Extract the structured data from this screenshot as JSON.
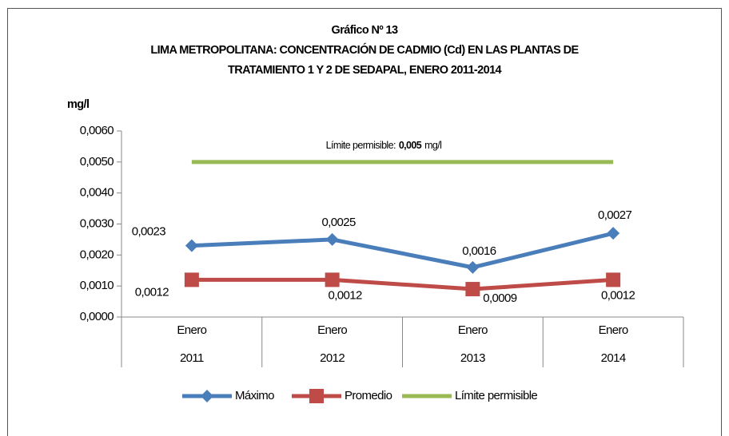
{
  "chart_data": {
    "type": "line",
    "title": "Gráfico Nº 13",
    "subtitle_lines": [
      "LIMA METROPOLITANA: CONCENTRACIÓN DE CADMIO (Cd) EN LAS PLANTAS DE",
      "TRATAMIENTO 1 Y 2 DE SEDAPAL, ENERO 2011-2014"
    ],
    "y_label": "mg/l",
    "categories": [
      "Enero",
      "Enero",
      "Enero",
      "Enero"
    ],
    "category_groups": [
      "2011",
      "2012",
      "2013",
      "2014"
    ],
    "series": [
      {
        "name": "Máximo",
        "color": "#4a7ebb",
        "marker": "diamond",
        "values": [
          0.0023,
          0.0025,
          0.0016,
          0.0027
        ],
        "value_labels": [
          "0,0023",
          "0,0025",
          "0,0016",
          "0,0027"
        ]
      },
      {
        "name": "Promedio",
        "color": "#be4b48",
        "marker": "square",
        "values": [
          0.0012,
          0.0012,
          0.0009,
          0.0012
        ],
        "value_labels": [
          "0,0012",
          "0,0012",
          "0,0009",
          "0,0012"
        ]
      },
      {
        "name": "Límite permisible",
        "color": "#98b954",
        "marker": "none",
        "values": [
          0.005,
          0.005,
          0.005,
          0.005
        ]
      }
    ],
    "annotation": {
      "prefix": "Límite permisible:",
      "value": "0,005",
      "unit": "mg/l"
    },
    "ylim": [
      0,
      0.006
    ],
    "yticks": [
      {
        "value": 0,
        "label": "0,0000"
      },
      {
        "value": 0.001,
        "label": "0,0010"
      },
      {
        "value": 0.002,
        "label": "0,0020"
      },
      {
        "value": 0.003,
        "label": "0,0030"
      },
      {
        "value": 0.004,
        "label": "0,0040"
      },
      {
        "value": 0.005,
        "label": "0,0050"
      },
      {
        "value": 0.006,
        "label": "0,0060"
      }
    ],
    "grid": false,
    "legend": "bottom"
  }
}
